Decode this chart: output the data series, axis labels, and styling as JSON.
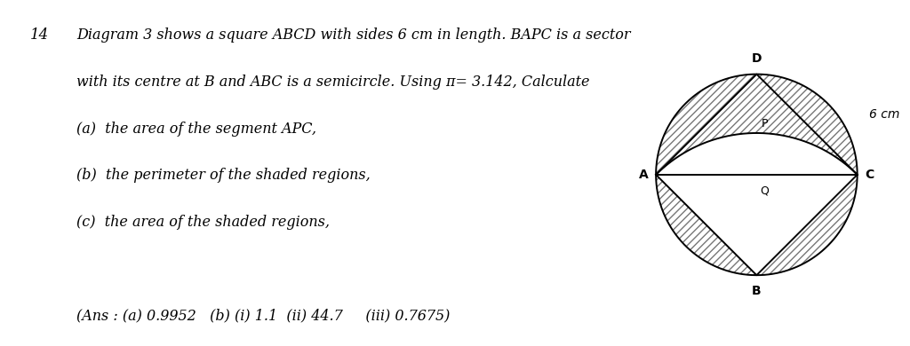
{
  "bg_color": "#ffffff",
  "text_color": "#000000",
  "question_number": "14",
  "line1": "Diagram 3 shows a square ABCD with sides 6 cm in length. BAPC is a sector",
  "line2": "with its centre at B and ABC is a semicircle. Using π= 3.142, Calculate",
  "line3_a": "(a)  the area of the segment APC,",
  "line3_b": "(b)  the perimeter of the shaded regions,",
  "line3_c": "(c)  the area of the shaded regions,",
  "ans_line": "(Ans : (a) 0.9952   (b) (i) 1.1  (ii) 44.7     (iii) 0.7675)",
  "diagram": {
    "label_D": "D",
    "label_A": "A",
    "label_B": "B",
    "label_C": "C",
    "label_P": "P",
    "label_Q": "Q",
    "label_6cm": "6 cm",
    "line_color": "#000000"
  }
}
